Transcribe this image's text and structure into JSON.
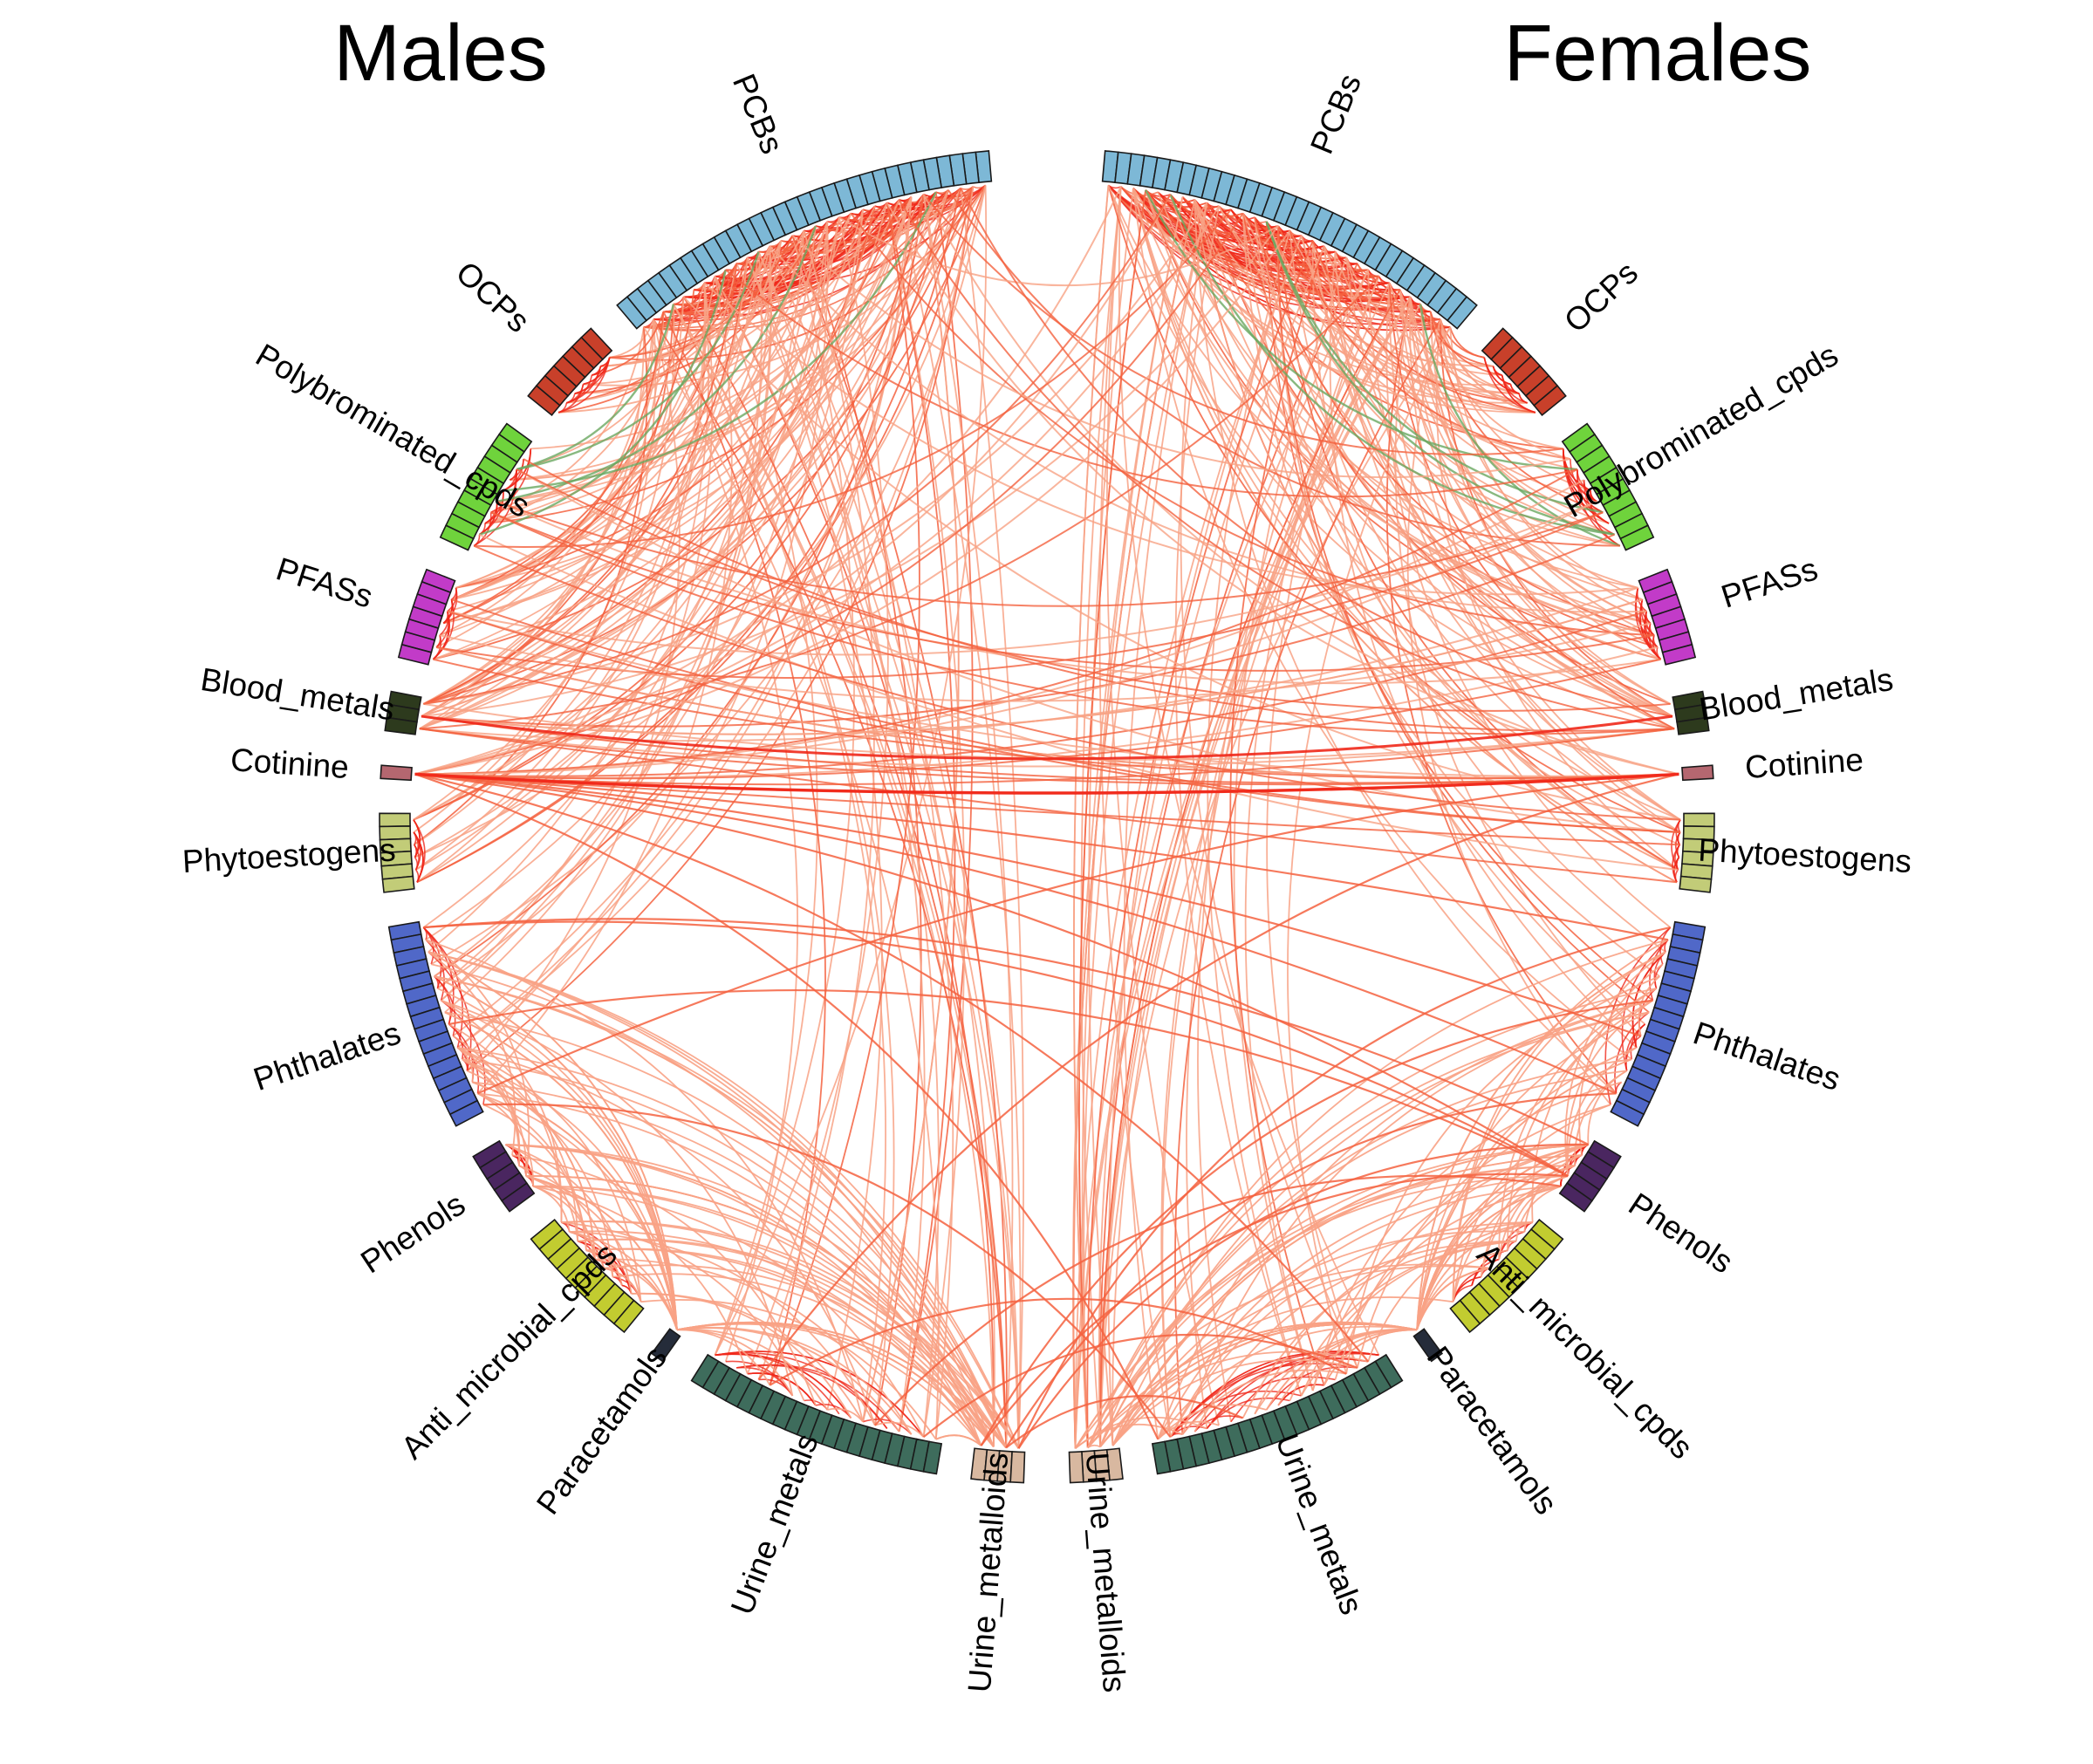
{
  "panels": [
    {
      "title": "Males",
      "groups": [
        {
          "name": "PCBs",
          "color": "#7db8d6",
          "cells": 31
        },
        {
          "name": "OCPs",
          "color": "#c8402a",
          "cells": 7
        },
        {
          "name": "Polybrominated_cpds",
          "color": "#6fd33c",
          "cells": 10
        },
        {
          "name": "PFASs",
          "color": "#c23bc8",
          "cells": 7
        },
        {
          "name": "Blood_metals",
          "color": "#2d3a1d",
          "cells": 3
        },
        {
          "name": "Cotinine",
          "color": "#b56770",
          "cells": 1
        },
        {
          "name": "Phytoestogens",
          "color": "#c2cc78",
          "cells": 6
        },
        {
          "name": "Phthalates",
          "color": "#5068c8",
          "cells": 16
        },
        {
          "name": "Phenols",
          "color": "#4a2660",
          "cells": 5
        },
        {
          "name": "Anti_microbial_cpds",
          "color": "#c2cc30",
          "cells": 10
        },
        {
          "name": "Paracetamols",
          "color": "#252c3a",
          "cells": 1
        },
        {
          "name": "Urine_metals",
          "color": "#3e6c5c",
          "cells": 20
        },
        {
          "name": "Urine_metalloids",
          "color": "#d8b8a0",
          "cells": 4
        }
      ]
    },
    {
      "title": "Females",
      "groups": [
        {
          "name": "PCBs",
          "color": "#7db8d6",
          "cells": 31
        },
        {
          "name": "OCPs",
          "color": "#c8402a",
          "cells": 7
        },
        {
          "name": "Polybrominated_cpds",
          "color": "#6fd33c",
          "cells": 10
        },
        {
          "name": "PFASs",
          "color": "#c23bc8",
          "cells": 7
        },
        {
          "name": "Blood_metals",
          "color": "#2d3a1d",
          "cells": 3
        },
        {
          "name": "Cotinine",
          "color": "#b56770",
          "cells": 1
        },
        {
          "name": "Phytoestogens",
          "color": "#c2cc78",
          "cells": 6
        },
        {
          "name": "Phthalates",
          "color": "#5068c8",
          "cells": 16
        },
        {
          "name": "Phenols",
          "color": "#4a2660",
          "cells": 5
        },
        {
          "name": "Anti_microbial_cpds",
          "color": "#c2cc30",
          "cells": 10
        },
        {
          "name": "Paracetamols",
          "color": "#252c3a",
          "cells": 1
        },
        {
          "name": "Urine_metals",
          "color": "#3e6c5c",
          "cells": 20
        },
        {
          "name": "Urine_metalloids",
          "color": "#d8b8a0",
          "cells": 4
        }
      ]
    }
  ],
  "link_colors": {
    "positive_strong": "#f0281a",
    "positive": "#f4623f",
    "positive_weak": "#f8a285",
    "negative": "#6aa860"
  }
}
